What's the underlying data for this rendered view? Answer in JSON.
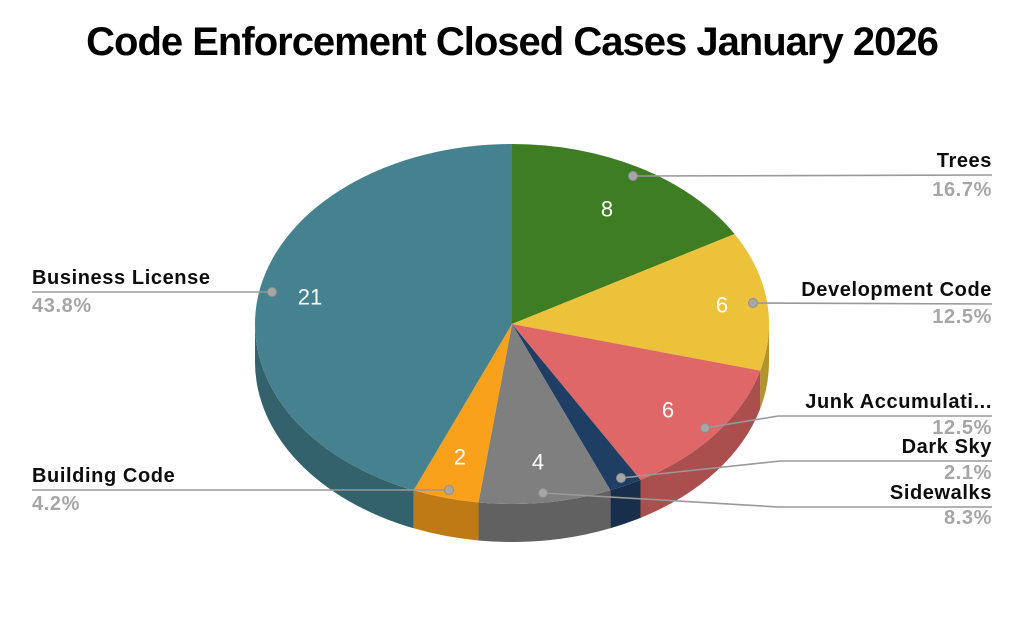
{
  "title": "Code Enforcement Closed Cases January 2026",
  "chart_data": {
    "type": "pie",
    "style": "3d",
    "title": "Code Enforcement Closed Cases January 2026",
    "total": 48,
    "start_angle_deg": 0,
    "direction": "clockwise",
    "legend_position": "callout-labels",
    "leader_line_color": "#999999",
    "label_name_color": "#0d0d0d",
    "label_percent_color": "#a6a6a6",
    "slices": [
      {
        "label": "Trees",
        "value": 8,
        "percent": "16.7%",
        "color": "#3e7d23",
        "value_label": "8"
      },
      {
        "label": "Development Code",
        "value": 6,
        "percent": "12.5%",
        "color": "#ecc23a",
        "value_label": "6"
      },
      {
        "label": "Junk Accumulati...",
        "value": 6,
        "percent": "12.5%",
        "color": "#e06767",
        "value_label": "6"
      },
      {
        "label": "Dark Sky",
        "value": 1,
        "percent": "2.1%",
        "color": "#1f3e64",
        "value_label": ""
      },
      {
        "label": "Sidewalks",
        "value": 4,
        "percent": "8.3%",
        "color": "#7f7f7f",
        "value_label": "4"
      },
      {
        "label": "Building Code",
        "value": 2,
        "percent": "4.2%",
        "color": "#f9a11b",
        "value_label": "2"
      },
      {
        "label": "Business License",
        "value": 21,
        "percent": "43.8%",
        "color": "#45818e",
        "value_label": "21"
      }
    ]
  }
}
